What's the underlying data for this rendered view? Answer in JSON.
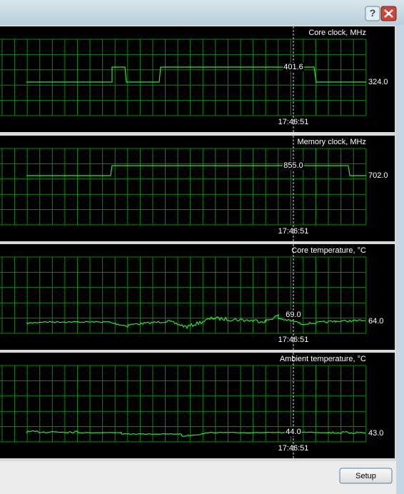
{
  "window": {
    "panels": [
      {
        "title": "Core clock, MHz",
        "cursor_value": "401.6",
        "current_value": "324.0",
        "cursor_time": "17:46:51"
      },
      {
        "title": "Memory clock, MHz",
        "cursor_value": "855.0",
        "current_value": "702.0",
        "cursor_time": "17:46:51"
      },
      {
        "title": "Core temperature, °C",
        "cursor_value": "69.0",
        "current_value": "64.0",
        "cursor_time": "17:46:51"
      },
      {
        "title": "Ambient temperature, °C",
        "cursor_value": "44.0",
        "current_value": "43.0",
        "cursor_time": "17:46:51"
      }
    ],
    "button": "Setup"
  }
}
